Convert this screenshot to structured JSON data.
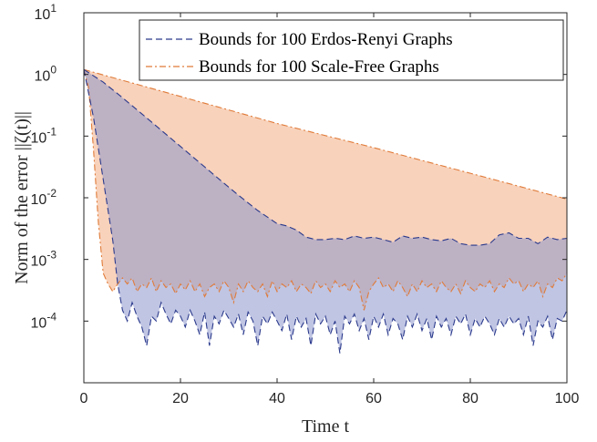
{
  "chart_data": {
    "type": "area",
    "title": "",
    "xlabel": "Time t",
    "ylabel": "Norm of the error ||ζ(t)||",
    "xlim": [
      0,
      100
    ],
    "ylim": [
      1e-05,
      10
    ],
    "yscale": "log",
    "xticks": [
      0,
      20,
      40,
      60,
      80,
      100
    ],
    "yticks": [
      {
        "value": 0.0001,
        "base": "10",
        "exp": "-4"
      },
      {
        "value": 0.001,
        "base": "10",
        "exp": "-3"
      },
      {
        "value": 0.01,
        "base": "10",
        "exp": "-2"
      },
      {
        "value": 0.1,
        "base": "10",
        "exp": "-1"
      },
      {
        "value": 1,
        "base": "10",
        "exp": "0"
      },
      {
        "value": 10,
        "base": "10",
        "exp": "1"
      }
    ],
    "grid": false,
    "legend_position": "top-right",
    "series": [
      {
        "name": "Bounds for 100 Erdos-Renyi Graphs",
        "color": "#2b3a8c",
        "fill": "#8c96cc",
        "upper": [
          [
            0,
            1.2
          ],
          [
            4,
            0.75
          ],
          [
            8,
            0.42
          ],
          [
            12,
            0.23
          ],
          [
            16,
            0.125
          ],
          [
            20,
            0.068
          ],
          [
            24,
            0.037
          ],
          [
            28,
            0.02
          ],
          [
            32,
            0.011
          ],
          [
            36,
            0.0062
          ],
          [
            40,
            0.0038
          ],
          [
            42,
            0.0035
          ],
          [
            44,
            0.003
          ],
          [
            46,
            0.0023
          ],
          [
            48,
            0.0021
          ],
          [
            50,
            0.0021
          ],
          [
            52,
            0.0022
          ],
          [
            54,
            0.0021
          ],
          [
            56,
            0.0024
          ],
          [
            58,
            0.0022
          ],
          [
            60,
            0.0023
          ],
          [
            62,
            0.0021
          ],
          [
            64,
            0.0019
          ],
          [
            66,
            0.0024
          ],
          [
            68,
            0.0022
          ],
          [
            70,
            0.0023
          ],
          [
            72,
            0.0021
          ],
          [
            74,
            0.002
          ],
          [
            76,
            0.0022
          ],
          [
            78,
            0.0018
          ],
          [
            80,
            0.0017
          ],
          [
            82,
            0.0017
          ],
          [
            84,
            0.0018
          ],
          [
            86,
            0.0025
          ],
          [
            88,
            0.0027
          ],
          [
            90,
            0.0022
          ],
          [
            92,
            0.0022
          ],
          [
            94,
            0.0018
          ],
          [
            96,
            0.0023
          ],
          [
            98,
            0.0021
          ],
          [
            100,
            0.0022
          ]
        ],
        "lower": [
          [
            0,
            1.2
          ],
          [
            2,
            0.2
          ],
          [
            4,
            0.02
          ],
          [
            6,
            0.002
          ],
          [
            7,
            0.0004
          ],
          [
            8,
            0.00015
          ],
          [
            9,
            0.0001
          ],
          [
            10,
            0.0002
          ],
          [
            11,
            0.00012
          ],
          [
            12,
            8e-05
          ],
          [
            13,
            4e-05
          ],
          [
            14,
            0.00012
          ],
          [
            15,
            0.0001
          ],
          [
            16,
            0.0002
          ],
          [
            17,
            0.00013
          ],
          [
            18,
            9e-05
          ],
          [
            19,
            0.00015
          ],
          [
            20,
            0.00012
          ],
          [
            21,
            8e-05
          ],
          [
            22,
            0.00015
          ],
          [
            23,
            0.0001
          ],
          [
            24,
            6e-05
          ],
          [
            25,
            0.00014
          ],
          [
            26,
            4e-05
          ],
          [
            27,
            0.00012
          ],
          [
            28,
            9e-05
          ],
          [
            29,
            0.00015
          ],
          [
            30,
            0.00011
          ],
          [
            31,
            8e-05
          ],
          [
            32,
            0.00013
          ],
          [
            33,
            6e-05
          ],
          [
            34,
            0.00014
          ],
          [
            35,
            0.0001
          ],
          [
            36,
            4e-05
          ],
          [
            37,
            0.00012
          ],
          [
            38,
            9e-05
          ],
          [
            39,
            0.00014
          ],
          [
            40,
            0.0001
          ],
          [
            41,
            7e-05
          ],
          [
            42,
            0.00013
          ],
          [
            43,
            5e-05
          ],
          [
            44,
            0.00012
          ],
          [
            45,
            8e-05
          ],
          [
            46,
            0.00011
          ],
          [
            47,
            4e-05
          ],
          [
            48,
            0.00013
          ],
          [
            49,
            9e-05
          ],
          [
            50,
            0.00012
          ],
          [
            51,
            6e-05
          ],
          [
            52,
            0.0001
          ],
          [
            53,
            3e-05
          ],
          [
            54,
            0.00012
          ],
          [
            55,
            9e-05
          ],
          [
            56,
            0.00013
          ],
          [
            57,
            7e-05
          ],
          [
            58,
            0.00011
          ],
          [
            59,
            5e-05
          ],
          [
            60,
            0.00012
          ],
          [
            61,
            8e-05
          ],
          [
            62,
            0.00013
          ],
          [
            63,
            6e-05
          ],
          [
            64,
            0.00011
          ],
          [
            65,
            9e-05
          ],
          [
            66,
            5e-05
          ],
          [
            67,
            0.00012
          ],
          [
            68,
            8e-05
          ],
          [
            69,
            0.00013
          ],
          [
            70,
            7e-05
          ],
          [
            71,
            0.00011
          ],
          [
            72,
            5e-05
          ],
          [
            73,
            0.00012
          ],
          [
            74,
            8e-05
          ],
          [
            75,
            0.00011
          ],
          [
            76,
            6e-05
          ],
          [
            77,
            0.00012
          ],
          [
            78,
            9e-05
          ],
          [
            79,
            0.00013
          ],
          [
            80,
            6e-05
          ],
          [
            81,
            0.00011
          ],
          [
            82,
            8e-05
          ],
          [
            83,
            0.00012
          ],
          [
            84,
            9e-05
          ],
          [
            85,
            6e-05
          ],
          [
            86,
            0.00011
          ],
          [
            87,
            8e-05
          ],
          [
            88,
            0.00012
          ],
          [
            89,
            9e-05
          ],
          [
            90,
            0.00011
          ],
          [
            91,
            6e-05
          ],
          [
            92,
            0.00012
          ],
          [
            93,
            4e-05
          ],
          [
            94,
            0.0001
          ],
          [
            95,
            8e-05
          ],
          [
            96,
            0.00012
          ],
          [
            97,
            5e-05
          ],
          [
            98,
            0.00011
          ],
          [
            99,
            0.0001
          ],
          [
            100,
            0.00015
          ]
        ]
      },
      {
        "name": "Bounds for 100 Scale-Free Graphs",
        "color": "#e07b39",
        "fill": "#f6c3a4",
        "upper": [
          [
            0,
            1.2
          ],
          [
            20,
            0.44
          ],
          [
            40,
            0.16
          ],
          [
            60,
            0.065
          ],
          [
            80,
            0.025
          ],
          [
            100,
            0.0095
          ]
        ],
        "lower": [
          [
            0,
            1.2
          ],
          [
            1,
            0.6
          ],
          [
            2,
            0.06
          ],
          [
            3,
            0.004
          ],
          [
            4,
            0.0006
          ],
          [
            5,
            0.0004
          ],
          [
            6,
            0.0003
          ],
          [
            7,
            0.0004
          ],
          [
            8,
            0.0005
          ],
          [
            9,
            0.0004
          ],
          [
            10,
            0.0005
          ],
          [
            11,
            0.0003
          ],
          [
            12,
            0.0004
          ],
          [
            13,
            0.00035
          ],
          [
            14,
            0.0005
          ],
          [
            15,
            0.0003
          ],
          [
            16,
            0.00045
          ],
          [
            17,
            0.00035
          ],
          [
            18,
            0.0004
          ],
          [
            19,
            0.00028
          ],
          [
            20,
            0.0004
          ],
          [
            21,
            0.00032
          ],
          [
            22,
            0.00045
          ],
          [
            23,
            0.0003
          ],
          [
            24,
            0.0004
          ],
          [
            25,
            0.00025
          ],
          [
            26,
            0.00035
          ],
          [
            27,
            0.0004
          ],
          [
            28,
            0.0003
          ],
          [
            29,
            0.00045
          ],
          [
            30,
            0.00035
          ],
          [
            31,
            0.0002
          ],
          [
            32,
            0.0004
          ],
          [
            33,
            0.0003
          ],
          [
            34,
            0.00045
          ],
          [
            35,
            0.00035
          ],
          [
            36,
            0.0003
          ],
          [
            37,
            0.0004
          ],
          [
            38,
            0.00025
          ],
          [
            39,
            0.00045
          ],
          [
            40,
            0.0003
          ],
          [
            41,
            0.0004
          ],
          [
            42,
            0.00035
          ],
          [
            43,
            0.00045
          ],
          [
            44,
            0.0003
          ],
          [
            45,
            0.0004
          ],
          [
            46,
            0.00035
          ],
          [
            47,
            0.00028
          ],
          [
            48,
            0.00045
          ],
          [
            49,
            0.00035
          ],
          [
            50,
            0.0004
          ],
          [
            51,
            0.0003
          ],
          [
            52,
            0.00045
          ],
          [
            53,
            0.00035
          ],
          [
            54,
            0.0004
          ],
          [
            55,
            0.0003
          ],
          [
            56,
            0.00045
          ],
          [
            57,
            0.00035
          ],
          [
            58,
            0.00015
          ],
          [
            59,
            0.0003
          ],
          [
            60,
            0.0004
          ],
          [
            61,
            0.0005
          ],
          [
            62,
            0.00035
          ],
          [
            63,
            0.0004
          ],
          [
            64,
            0.0003
          ],
          [
            65,
            0.00045
          ],
          [
            66,
            0.00035
          ],
          [
            67,
            0.00025
          ],
          [
            68,
            0.0004
          ],
          [
            69,
            0.0003
          ],
          [
            70,
            0.00045
          ],
          [
            71,
            0.00035
          ],
          [
            72,
            0.0004
          ],
          [
            73,
            0.0003
          ],
          [
            74,
            0.00045
          ],
          [
            75,
            0.00035
          ],
          [
            76,
            0.0003
          ],
          [
            77,
            0.0004
          ],
          [
            78,
            0.00028
          ],
          [
            79,
            0.00045
          ],
          [
            80,
            0.00035
          ],
          [
            81,
            0.0003
          ],
          [
            82,
            0.0004
          ],
          [
            83,
            0.00035
          ],
          [
            84,
            0.00045
          ],
          [
            85,
            0.0003
          ],
          [
            86,
            0.0004
          ],
          [
            87,
            0.00035
          ],
          [
            88,
            0.0005
          ],
          [
            89,
            0.0004
          ],
          [
            90,
            0.00045
          ],
          [
            91,
            0.0003
          ],
          [
            92,
            0.0004
          ],
          [
            93,
            0.00035
          ],
          [
            94,
            0.00045
          ],
          [
            95,
            0.00025
          ],
          [
            96,
            0.0004
          ],
          [
            97,
            0.00035
          ],
          [
            98,
            0.0005
          ],
          [
            99,
            0.00045
          ],
          [
            100,
            0.0006
          ]
        ]
      }
    ]
  }
}
